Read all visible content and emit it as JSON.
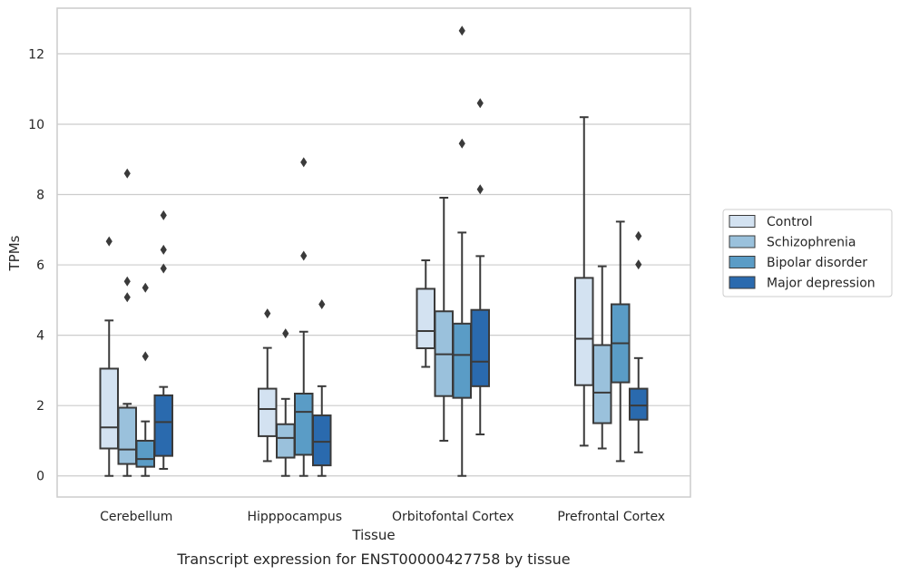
{
  "chart_data": {
    "type": "box",
    "caption": "Transcript expression for ENST00000427758 by tissue",
    "xlabel": "Tissue",
    "ylabel": "TPMs",
    "ylim": [
      -0.6,
      13.3
    ],
    "yticks": [
      0,
      2,
      4,
      6,
      8,
      10,
      12
    ],
    "grid": "horizontal",
    "legend_position": "right",
    "categories": [
      "Cerebellum",
      "Hipppocampus",
      "Orbitofontal Cortex",
      "Prefrontal Cortex"
    ],
    "series": [
      {
        "name": "Control",
        "color": "#d3e2f1",
        "boxes": [
          {
            "whisker_low": 0.0,
            "q1": 0.78,
            "median": 1.38,
            "q3": 3.05,
            "whisker_high": 4.42,
            "outliers": [
              6.67
            ]
          },
          {
            "whisker_low": 0.42,
            "q1": 1.13,
            "median": 1.9,
            "q3": 2.48,
            "whisker_high": 3.64,
            "outliers": [
              4.62
            ]
          },
          {
            "whisker_low": 3.1,
            "q1": 3.63,
            "median": 4.12,
            "q3": 5.32,
            "whisker_high": 6.13,
            "outliers": []
          },
          {
            "whisker_low": 0.86,
            "q1": 2.58,
            "median": 3.9,
            "q3": 5.63,
            "whisker_high": 10.2,
            "outliers": []
          }
        ]
      },
      {
        "name": "Schizophrenia",
        "color": "#9ac1dc",
        "boxes": [
          {
            "whisker_low": 0.0,
            "q1": 0.34,
            "median": 0.75,
            "q3": 1.94,
            "whisker_high": 2.05,
            "outliers": [
              5.08,
              5.53,
              8.6
            ]
          },
          {
            "whisker_low": 0.0,
            "q1": 0.52,
            "median": 1.08,
            "q3": 1.47,
            "whisker_high": 2.19,
            "outliers": [
              4.05
            ]
          },
          {
            "whisker_low": 1.0,
            "q1": 2.27,
            "median": 3.46,
            "q3": 4.68,
            "whisker_high": 7.91,
            "outliers": []
          },
          {
            "whisker_low": 0.78,
            "q1": 1.5,
            "median": 2.37,
            "q3": 3.72,
            "whisker_high": 5.96,
            "outliers": []
          }
        ]
      },
      {
        "name": "Bipolar disorder",
        "color": "#5a9cc6",
        "boxes": [
          {
            "whisker_low": 0.0,
            "q1": 0.26,
            "median": 0.48,
            "q3": 1.0,
            "whisker_high": 1.55,
            "outliers": [
              3.4,
              5.35
            ]
          },
          {
            "whisker_low": 0.0,
            "q1": 0.6,
            "median": 1.82,
            "q3": 2.34,
            "whisker_high": 4.1,
            "outliers": [
              6.26,
              8.92
            ]
          },
          {
            "whisker_low": 0.0,
            "q1": 2.22,
            "median": 3.44,
            "q3": 4.33,
            "whisker_high": 6.92,
            "outliers": [
              9.45,
              12.66
            ]
          },
          {
            "whisker_low": 0.42,
            "q1": 2.66,
            "median": 3.77,
            "q3": 4.88,
            "whisker_high": 7.23,
            "outliers": []
          }
        ]
      },
      {
        "name": "Major depression",
        "color": "#2a6aae",
        "boxes": [
          {
            "whisker_low": 0.2,
            "q1": 0.57,
            "median": 1.53,
            "q3": 2.29,
            "whisker_high": 2.53,
            "outliers": [
              5.9,
              6.43,
              7.41
            ]
          },
          {
            "whisker_low": 0.0,
            "q1": 0.3,
            "median": 0.97,
            "q3": 1.72,
            "whisker_high": 2.55,
            "outliers": [
              4.88
            ]
          },
          {
            "whisker_low": 1.18,
            "q1": 2.55,
            "median": 3.25,
            "q3": 4.72,
            "whisker_high": 6.25,
            "outliers": [
              8.15,
              10.6
            ]
          },
          {
            "whisker_low": 0.67,
            "q1": 1.6,
            "median": 2.0,
            "q3": 2.48,
            "whisker_high": 3.35,
            "outliers": [
              6.01,
              6.82
            ]
          }
        ]
      }
    ]
  }
}
